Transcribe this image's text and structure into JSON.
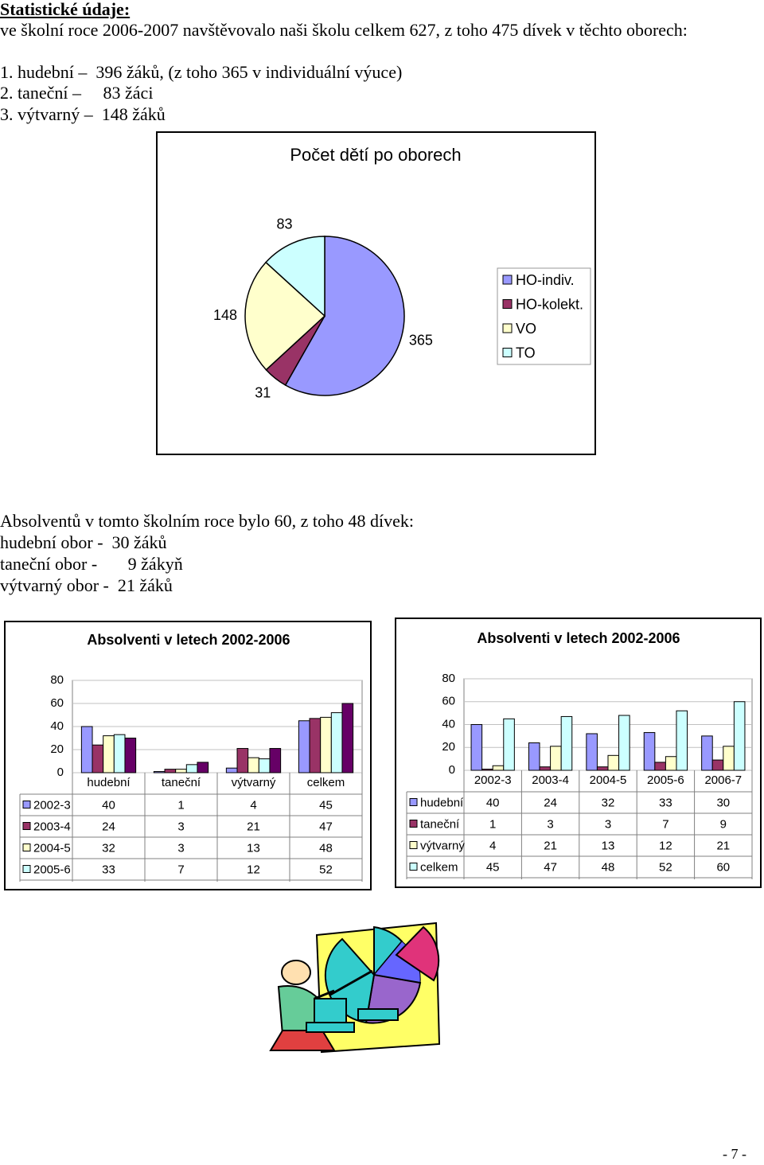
{
  "header": {
    "title": "Statistické údaje:"
  },
  "intro": [
    "ve školní roce 2006-2007 navštěvovalo naši školu celkem 627, z toho 475 dívek v těchto oborech:",
    "1. hudební –  396 žáků, (z toho 365 v individuální výuce)",
    "2. taneční –     83 žáci",
    "3. výtvarný –  148 žáků"
  ],
  "graduates": [
    "Absolventů v tomto školním roce bylo 60, z toho 48 dívek:",
    "hudební obor -  30 žáků",
    "taneční obor -       9 žákyň",
    "výtvarný obor -  21 žáků"
  ],
  "page_number": "- 7 -",
  "chart_data": [
    {
      "type": "pie",
      "title": "Počet dětí po oborech",
      "categories": [
        "HO-indiv.",
        "HO-kolekt.",
        "VO",
        "TO"
      ],
      "values": [
        365,
        31,
        148,
        83
      ],
      "colors": [
        "#9999ff",
        "#993366",
        "#ffffcc",
        "#ccffff"
      ],
      "legend": "right"
    },
    {
      "type": "bar",
      "title": "Absolventi v letech 2002-2006",
      "categories": [
        "hudební",
        "taneční",
        "výtvarný",
        "celkem"
      ],
      "series": [
        {
          "name": "2002-3",
          "color": "#9999ff",
          "values": [
            40,
            1,
            4,
            45
          ]
        },
        {
          "name": "2003-4",
          "color": "#993366",
          "values": [
            24,
            3,
            21,
            47
          ]
        },
        {
          "name": "2004-5",
          "color": "#ffffcc",
          "values": [
            32,
            3,
            13,
            48
          ]
        },
        {
          "name": "2005-6",
          "color": "#ccffff",
          "values": [
            33,
            7,
            12,
            52
          ]
        },
        {
          "color": "#660066",
          "values": [
            30,
            9,
            21,
            60
          ]
        }
      ],
      "ylim": [
        0,
        80
      ],
      "yticks": [
        0,
        20,
        40,
        60,
        80
      ],
      "grid": true,
      "data_table": true
    },
    {
      "type": "bar",
      "title": "Absolventi v letech 2002-2006",
      "categories": [
        "2002-3",
        "2003-4",
        "2004-5",
        "2005-6",
        "2006-7"
      ],
      "series": [
        {
          "name": "hudební",
          "color": "#9999ff",
          "values": [
            40,
            24,
            32,
            33,
            30
          ]
        },
        {
          "name": "taneční",
          "color": "#993366",
          "values": [
            1,
            3,
            3,
            7,
            9
          ]
        },
        {
          "name": "výtvarný",
          "color": "#ffffcc",
          "values": [
            4,
            21,
            13,
            12,
            21
          ]
        },
        {
          "name": "celkem",
          "color": "#ccffff",
          "values": [
            45,
            47,
            48,
            52,
            60
          ]
        }
      ],
      "ylim": [
        0,
        80
      ],
      "yticks": [
        0,
        20,
        40,
        60,
        80
      ],
      "grid": true,
      "data_table": true
    }
  ]
}
